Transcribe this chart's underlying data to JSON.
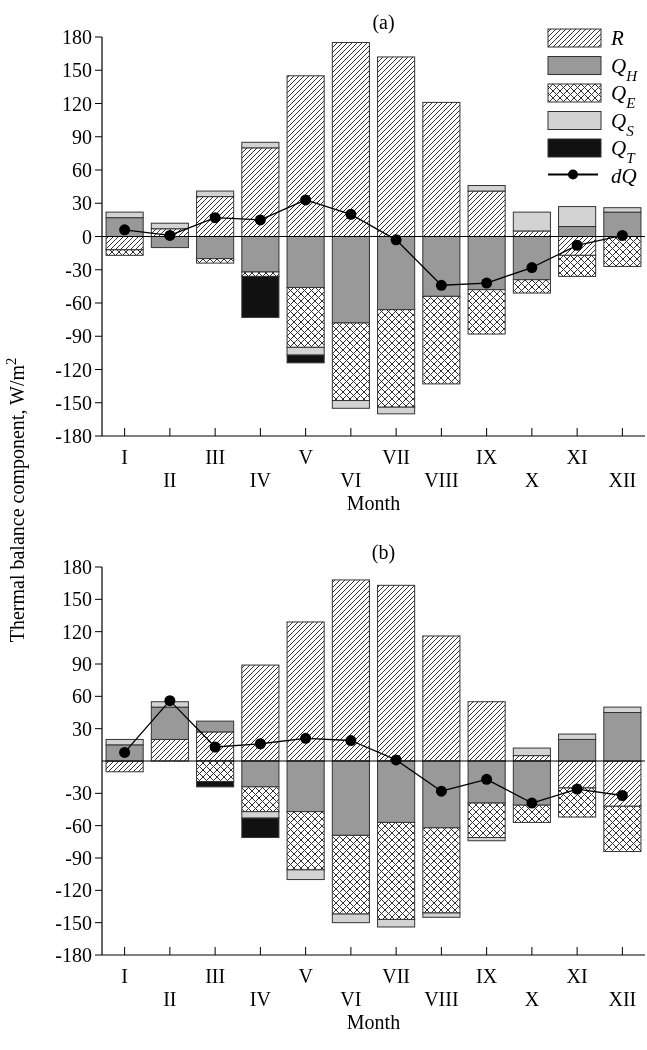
{
  "chart_data": [
    {
      "type": "bar",
      "stacked": true,
      "title": "(a)",
      "xlabel": "Month",
      "ylabel": "Thermal balance component, W/m$^{2}$",
      "categories": [
        "I",
        "II",
        "III",
        "IV",
        "V",
        "VI",
        "VII",
        "VIII",
        "IX",
        "X",
        "XI",
        "XII"
      ],
      "ylim": [
        -180,
        180
      ],
      "yticks": [
        -180,
        -150,
        -120,
        -90,
        -60,
        -30,
        0,
        30,
        60,
        90,
        120,
        150,
        180
      ],
      "legend": "top right",
      "series": [
        {
          "name": "R",
          "color": "#333333",
          "values": [
            -12,
            7,
            36,
            80,
            145,
            175,
            162,
            121,
            41,
            5,
            -17,
            null
          ]
        },
        {
          "name": "Q$_{H}$",
          "color": "#999999",
          "values": [
            17,
            -10,
            -20,
            -32,
            -46,
            -78,
            -66,
            -54,
            -48,
            -39,
            9,
            22
          ]
        },
        {
          "name": "Q$_{E}$",
          "color": "#333333",
          "values": [
            -5,
            null,
            -4,
            -4,
            -54,
            -70,
            -88,
            -79,
            -40,
            -12,
            -19,
            -27
          ]
        },
        {
          "name": "Q$_{S}$",
          "color": "#d3d3d3",
          "values": [
            5,
            5,
            5,
            5,
            -7,
            -7,
            -6,
            null,
            5,
            17,
            18,
            4
          ]
        },
        {
          "name": "Q$_{T}$",
          "color": "#111111",
          "values": [
            null,
            null,
            null,
            -37,
            -7,
            null,
            null,
            null,
            null,
            null,
            null,
            null
          ]
        },
        {
          "name": "dQ",
          "type": "line",
          "color": "#000000",
          "marker": "circle",
          "values": [
            6,
            1,
            17,
            15,
            33,
            20,
            -3,
            -44,
            -42,
            -28,
            -8,
            1
          ]
        }
      ]
    },
    {
      "type": "bar",
      "stacked": true,
      "title": "(b)",
      "xlabel": "Month",
      "categories": [
        "I",
        "II",
        "III",
        "IV",
        "V",
        "VI",
        "VII",
        "VIII",
        "IX",
        "X",
        "XI",
        "XII"
      ],
      "ylim": [
        -180,
        180
      ],
      "yticks": [
        -180,
        -150,
        -120,
        -90,
        -60,
        -30,
        30,
        60,
        90,
        120,
        150,
        180
      ],
      "legend": false,
      "series": [
        {
          "color": "#333333",
          "values": [
            -10,
            20,
            27,
            89,
            129,
            168,
            163,
            116,
            55,
            5,
            -25,
            -42
          ]
        },
        {
          "color": "#999999",
          "values": [
            15,
            30,
            10,
            -24,
            -47,
            -69,
            -57,
            -62,
            -39,
            -41,
            20,
            45
          ]
        },
        {
          "color": "#333333",
          "values": [
            null,
            null,
            -19,
            -23,
            -54,
            -73,
            -90,
            -79,
            -32,
            -16,
            -27,
            -42
          ]
        },
        {
          "color": "#d3d3d3",
          "values": [
            5,
            5,
            null,
            -6,
            -9,
            -8,
            -7,
            -4,
            -3,
            7,
            5,
            5
          ]
        },
        {
          "color": "#111111",
          "values": [
            null,
            null,
            -5,
            -18,
            null,
            null,
            null,
            null,
            null,
            null,
            null,
            null
          ]
        },
        {
          "type": "line",
          "color": "#000000",
          "marker": "circle",
          "values": [
            8,
            56,
            13,
            16,
            21,
            19,
            1,
            -28,
            -17,
            -39,
            -26,
            -32
          ]
        }
      ]
    }
  ]
}
